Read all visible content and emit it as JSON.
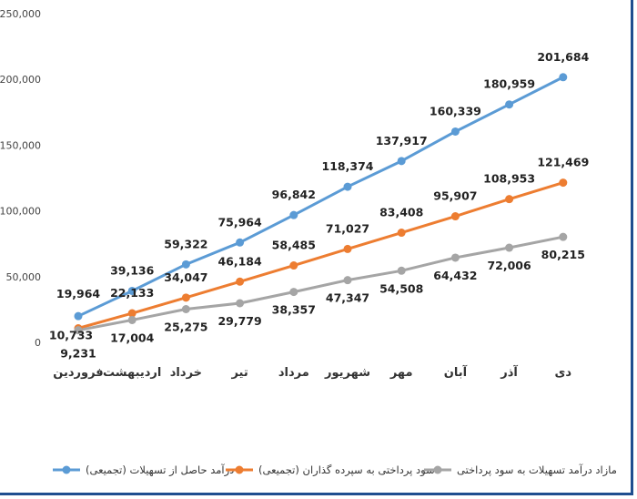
{
  "chart_data": {
    "type": "line",
    "categories": [
      "فروردین",
      "اردیبهشت",
      "خرداد",
      "تیر",
      "مرداد",
      "شهریور",
      "مهر",
      "آبان",
      "آذر",
      "دی"
    ],
    "series": [
      {
        "name": "درآمد حاصل از تسهیلات (تجمیعی)",
        "color": "#5b9bd5",
        "values": [
          19964,
          39136,
          59322,
          75964,
          96842,
          118374,
          137917,
          160339,
          180959,
          201684
        ],
        "labels": [
          "19,964",
          "39,136",
          "59,322",
          "75,964",
          "96,842",
          "118,374",
          "137,917",
          "160,339",
          "180,959",
          "201,684"
        ]
      },
      {
        "name": "سود پرداختی به سپرده گذاران (تجمیعی)",
        "color": "#ed7d31",
        "values": [
          10733,
          22133,
          34047,
          46184,
          58485,
          71027,
          83408,
          95907,
          108953,
          121469
        ],
        "labels": [
          "10,733",
          "22,133",
          "34,047",
          "46,184",
          "58,485",
          "71,027",
          "83,408",
          "95,907",
          "108,953",
          "121,469"
        ]
      },
      {
        "name": "مازاد درآمد  تسهیلات به سود پرداختی",
        "color": "#a5a5a5",
        "values": [
          9231,
          17004,
          25275,
          29779,
          38357,
          47347,
          54508,
          64432,
          72006,
          80215
        ],
        "labels": [
          "9,231",
          "17,004",
          "25,275",
          "29,779",
          "38,357",
          "47,347",
          "54,508",
          "64,432",
          "72,006",
          "80,215"
        ]
      }
    ],
    "yticks": [
      "0",
      "50,000",
      "100,000",
      "150,000",
      "200,000",
      "250,000"
    ],
    "ytick_values": [
      0,
      50000,
      100000,
      150000,
      200000,
      250000
    ],
    "ylim": [
      0,
      250000
    ],
    "grid": false,
    "title": "",
    "xlabel": "",
    "ylabel": "",
    "legend_position": "bottom"
  }
}
